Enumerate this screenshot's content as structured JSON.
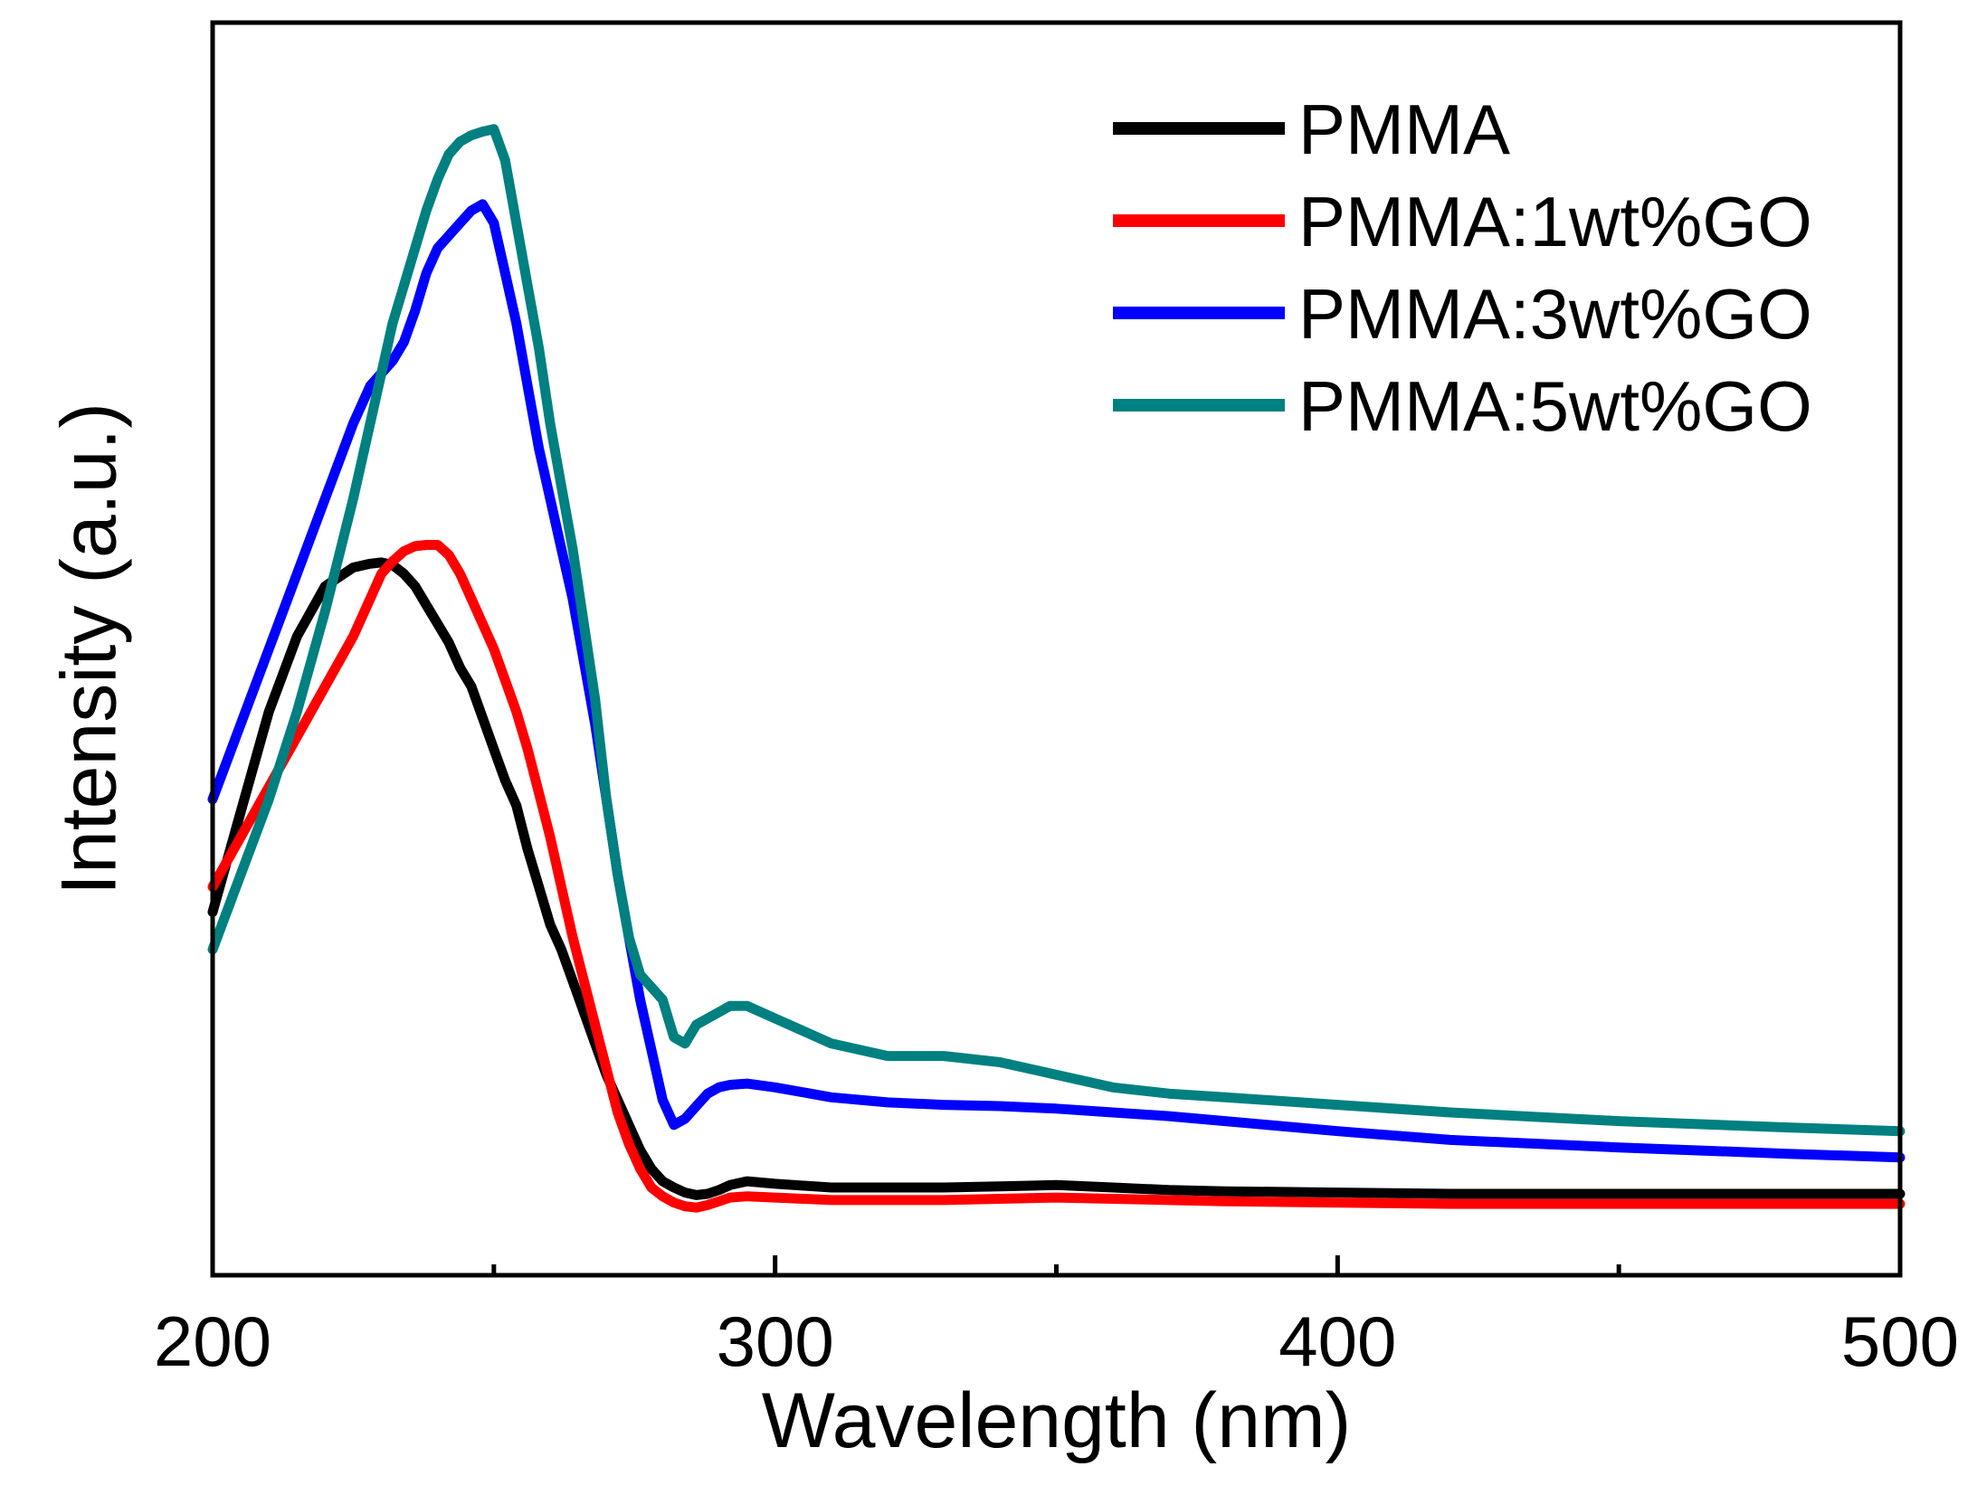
{
  "chart_data": {
    "type": "line",
    "xlabel": "Wavelength (nm)",
    "ylabel": "Intensity (a.u.)",
    "xlim": [
      200,
      500
    ],
    "ylim": [
      0,
      100
    ],
    "xticks": [
      200,
      300,
      400,
      500
    ],
    "xticks_minor": [
      250,
      350,
      450
    ],
    "ytick_labels_shown": false,
    "grid": false,
    "legend_position": "top-right",
    "series": [
      {
        "name": "PMMA",
        "color": "#000000",
        "x": [
          200,
          205,
          210,
          215,
          220,
          225,
          228,
          230,
          232,
          234,
          236,
          238,
          240,
          242,
          244,
          246,
          248,
          250,
          252,
          254,
          256,
          258,
          260,
          262,
          264,
          266,
          268,
          270,
          272,
          274,
          276,
          278,
          280,
          282,
          284,
          286,
          288,
          290,
          292,
          295,
          300,
          310,
          320,
          330,
          340,
          350,
          360,
          370,
          380,
          400,
          420,
          450,
          480,
          500
        ],
        "y": [
          29,
          37,
          45,
          51,
          55,
          56.5,
          56.8,
          56.9,
          56.7,
          56,
          55,
          53.5,
          52,
          50.5,
          48.5,
          47,
          44.5,
          42,
          39.5,
          37.5,
          34,
          31,
          28,
          26,
          23.5,
          21,
          18.5,
          16,
          14,
          12,
          10,
          8.5,
          7.5,
          7,
          6.6,
          6.4,
          6.5,
          6.8,
          7.2,
          7.5,
          7.3,
          7,
          7,
          7,
          7.1,
          7.2,
          7,
          6.8,
          6.7,
          6.6,
          6.5,
          6.5,
          6.5,
          6.5
        ]
      },
      {
        "name": "PMMA:1wt%GO",
        "color": "#ff0000",
        "x": [
          200,
          205,
          210,
          215,
          220,
          225,
          228,
          230,
          232,
          234,
          236,
          238,
          240,
          242,
          244,
          246,
          248,
          250,
          252,
          254,
          256,
          258,
          260,
          262,
          264,
          266,
          268,
          270,
          272,
          274,
          276,
          278,
          280,
          282,
          284,
          286,
          288,
          290,
          292,
          295,
          300,
          310,
          320,
          330,
          340,
          350,
          360,
          370,
          380,
          400,
          420,
          450,
          480,
          500
        ],
        "y": [
          31,
          35,
          39,
          43,
          47,
          51,
          54,
          56,
          57,
          57.8,
          58.2,
          58.3,
          58.3,
          57.5,
          56,
          54,
          52,
          50,
          47.5,
          45,
          42,
          38.5,
          35,
          31,
          27,
          23.5,
          20,
          16.5,
          13,
          10.5,
          8.5,
          7,
          6.3,
          5.8,
          5.5,
          5.4,
          5.6,
          5.9,
          6.2,
          6.3,
          6.2,
          6,
          6,
          6,
          6.1,
          6.2,
          6.1,
          6,
          5.9,
          5.8,
          5.7,
          5.7,
          5.7,
          5.7
        ]
      },
      {
        "name": "PMMA:3wt%GO",
        "color": "#0000ff",
        "x": [
          200,
          205,
          210,
          215,
          220,
          225,
          228,
          230,
          232,
          234,
          236,
          238,
          240,
          242,
          244,
          246,
          248,
          250,
          252,
          254,
          256,
          258,
          260,
          262,
          264,
          266,
          268,
          270,
          272,
          274,
          276,
          278,
          280,
          282,
          284,
          286,
          288,
          290,
          292,
          295,
          300,
          310,
          320,
          330,
          340,
          350,
          360,
          370,
          380,
          400,
          420,
          450,
          480,
          500
        ],
        "y": [
          38,
          44,
          50,
          56,
          62,
          68,
          71,
          72,
          73,
          74.5,
          77,
          80,
          82,
          83,
          84,
          85,
          85.5,
          84,
          80,
          76,
          71,
          66,
          62,
          58,
          54,
          49,
          44,
          38,
          32,
          27,
          22,
          18,
          14,
          12,
          12.5,
          13.5,
          14.5,
          15,
          15.2,
          15.3,
          15,
          14.2,
          13.8,
          13.6,
          13.5,
          13.3,
          13,
          12.7,
          12.3,
          11.5,
          10.8,
          10.2,
          9.7,
          9.4
        ]
      },
      {
        "name": "PMMA:5wt%GO",
        "color": "#008080",
        "x": [
          200,
          205,
          210,
          215,
          220,
          225,
          228,
          230,
          232,
          234,
          236,
          238,
          240,
          242,
          244,
          246,
          248,
          250,
          252,
          254,
          256,
          258,
          260,
          262,
          264,
          266,
          268,
          270,
          272,
          274,
          276,
          278,
          280,
          282,
          284,
          286,
          288,
          290,
          292,
          295,
          300,
          310,
          320,
          330,
          340,
          350,
          360,
          370,
          380,
          400,
          420,
          450,
          480,
          500
        ],
        "y": [
          26,
          32,
          38,
          45,
          53,
          62,
          68,
          72,
          76,
          79,
          82,
          85,
          87.5,
          89.5,
          90.5,
          91,
          91.3,
          91.5,
          89,
          84,
          79,
          74,
          68,
          63,
          58,
          52,
          46,
          38,
          32,
          27,
          24,
          23,
          22,
          19,
          18.5,
          20,
          20.5,
          21,
          21.5,
          21.5,
          20.5,
          18.5,
          17.5,
          17.5,
          17,
          16,
          15,
          14.5,
          14.2,
          13.6,
          13,
          12.3,
          11.8,
          11.5
        ]
      }
    ]
  }
}
